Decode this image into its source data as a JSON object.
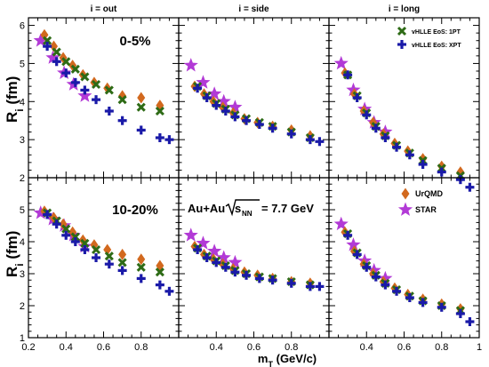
{
  "chart_data": {
    "type": "scatter",
    "xlabel": "m_T (GeV/c)",
    "ylabel": "R_i (fm)",
    "xlim": [
      0.2,
      1.0
    ],
    "ylim_top": [
      2,
      6.2
    ],
    "ylim_bottom": [
      1,
      6.0
    ],
    "xticks": [
      "0.2",
      "0.4",
      "0.6",
      "0.8",
      "1"
    ],
    "yticks_top": [
      "2",
      "3",
      "4",
      "5",
      "6"
    ],
    "yticks_bottom": [
      "1",
      "2",
      "3",
      "4",
      "5"
    ],
    "grid": false,
    "annotation": "Au+Au",
    "annotation_energy": "= 7.7 GeV",
    "panels": [
      {
        "row": 0,
        "col": 0,
        "title": "i = out",
        "centrality": "0-5%",
        "series": [
          {
            "name": "UrQMD",
            "x": [
              0.285,
              0.335,
              0.385,
              0.435,
              0.49,
              0.55,
              0.62,
              0.7,
              0.8,
              0.9
            ],
            "y": [
              5.75,
              5.45,
              5.15,
              4.95,
              4.7,
              4.5,
              4.35,
              4.15,
              4.1,
              3.9
            ]
          },
          {
            "name": "STAR",
            "x": [
              0.265,
              0.33,
              0.39,
              0.44,
              0.5
            ],
            "y": [
              5.6,
              5.15,
              4.75,
              4.45,
              4.15
            ]
          },
          {
            "name": "vHLLE EoS: 1PT",
            "x": [
              0.3,
              0.35,
              0.4,
              0.45,
              0.5,
              0.56,
              0.63,
              0.7,
              0.8,
              0.9
            ],
            "y": [
              5.6,
              5.3,
              5.05,
              4.85,
              4.65,
              4.45,
              4.3,
              4.05,
              3.85,
              3.75
            ]
          },
          {
            "name": "vHLLE EoS: XPT",
            "x": [
              0.3,
              0.35,
              0.4,
              0.45,
              0.5,
              0.56,
              0.63,
              0.7,
              0.8,
              0.9,
              0.95
            ],
            "y": [
              5.45,
              5.05,
              4.75,
              4.5,
              4.3,
              4.05,
              3.75,
              3.5,
              3.25,
              3.05,
              3.0
            ]
          }
        ]
      },
      {
        "row": 0,
        "col": 1,
        "title": "i = side",
        "centrality": "",
        "series": [
          {
            "name": "UrQMD",
            "x": [
              0.285,
              0.335,
              0.385,
              0.435,
              0.49,
              0.55,
              0.62,
              0.7,
              0.8,
              0.9
            ],
            "y": [
              4.4,
              4.2,
              4.0,
              3.85,
              3.7,
              3.55,
              3.45,
              3.35,
              3.25,
              3.1
            ]
          },
          {
            "name": "STAR",
            "x": [
              0.265,
              0.33,
              0.39,
              0.44,
              0.5
            ],
            "y": [
              4.95,
              4.5,
              4.2,
              4.0,
              3.85
            ]
          },
          {
            "name": "vHLLE EoS: 1PT",
            "x": [
              0.3,
              0.35,
              0.4,
              0.45,
              0.5,
              0.56,
              0.63,
              0.7,
              0.8,
              0.9
            ],
            "y": [
              4.4,
              4.15,
              3.95,
              3.8,
              3.65,
              3.55,
              3.45,
              3.35,
              3.2,
              3.05
            ]
          },
          {
            "name": "vHLLE EoS: XPT",
            "x": [
              0.3,
              0.35,
              0.4,
              0.45,
              0.5,
              0.56,
              0.63,
              0.7,
              0.8,
              0.9,
              0.95
            ],
            "y": [
              4.35,
              4.1,
              3.9,
              3.75,
              3.6,
              3.5,
              3.4,
              3.3,
              3.15,
              3.0,
              2.95
            ]
          }
        ]
      },
      {
        "row": 0,
        "col": 2,
        "title": "i = long",
        "centrality": "",
        "series": [
          {
            "name": "UrQMD",
            "x": [
              0.285,
              0.335,
              0.385,
              0.435,
              0.49,
              0.55,
              0.62,
              0.7,
              0.8,
              0.9
            ],
            "y": [
              4.75,
              4.2,
              3.75,
              3.45,
              3.15,
              2.9,
              2.7,
              2.5,
              2.3,
              2.15
            ]
          },
          {
            "name": "STAR",
            "x": [
              0.265,
              0.33,
              0.39,
              0.44,
              0.5
            ],
            "y": [
              5.0,
              4.3,
              3.8,
              3.45,
              3.2
            ]
          },
          {
            "name": "vHLLE EoS: 1PT",
            "x": [
              0.3,
              0.35,
              0.4,
              0.45,
              0.5,
              0.56,
              0.63,
              0.7,
              0.8,
              0.9
            ],
            "y": [
              4.7,
              4.15,
              3.7,
              3.35,
              3.1,
              2.85,
              2.65,
              2.45,
              2.25,
              2.05
            ]
          },
          {
            "name": "vHLLE EoS: XPT",
            "x": [
              0.3,
              0.35,
              0.4,
              0.45,
              0.5,
              0.56,
              0.63,
              0.7,
              0.8,
              0.9,
              0.95
            ],
            "y": [
              4.7,
              4.1,
              3.65,
              3.3,
              3.05,
              2.8,
              2.6,
              2.35,
              2.15,
              1.95,
              1.75
            ]
          }
        ]
      },
      {
        "row": 1,
        "col": 0,
        "title": "",
        "centrality": "10-20%",
        "series": [
          {
            "name": "UrQMD",
            "x": [
              0.285,
              0.335,
              0.385,
              0.435,
              0.49,
              0.55,
              0.62,
              0.7,
              0.8,
              0.9
            ],
            "y": [
              4.95,
              4.75,
              4.55,
              4.3,
              4.05,
              3.9,
              3.75,
              3.6,
              3.45,
              3.25
            ]
          },
          {
            "name": "STAR",
            "x": [
              0.265,
              0.33,
              0.39,
              0.44,
              0.5
            ],
            "y": [
              4.9,
              4.7,
              4.5,
              4.2,
              3.85
            ]
          },
          {
            "name": "vHLLE EoS: 1PT",
            "x": [
              0.3,
              0.35,
              0.4,
              0.45,
              0.5,
              0.56,
              0.63,
              0.7,
              0.8,
              0.9
            ],
            "y": [
              4.9,
              4.65,
              4.4,
              4.15,
              3.95,
              3.75,
              3.55,
              3.35,
              3.2,
              3.05
            ]
          },
          {
            "name": "vHLLE EoS: XPT",
            "x": [
              0.3,
              0.35,
              0.4,
              0.45,
              0.5,
              0.56,
              0.63,
              0.7,
              0.8,
              0.9,
              0.95
            ],
            "y": [
              4.85,
              4.55,
              4.2,
              4.0,
              3.75,
              3.5,
              3.3,
              3.1,
              2.85,
              2.65,
              2.45
            ]
          }
        ]
      },
      {
        "row": 1,
        "col": 1,
        "title": "",
        "centrality": "",
        "series": [
          {
            "name": "UrQMD",
            "x": [
              0.285,
              0.335,
              0.385,
              0.435,
              0.49,
              0.55,
              0.62,
              0.7,
              0.8,
              0.9
            ],
            "y": [
              3.85,
              3.6,
              3.45,
              3.3,
              3.15,
              3.05,
              2.95,
              2.85,
              2.75,
              2.7
            ]
          },
          {
            "name": "STAR",
            "x": [
              0.265,
              0.33,
              0.39,
              0.44,
              0.5
            ],
            "y": [
              4.2,
              3.95,
              3.7,
              3.5,
              3.35
            ]
          },
          {
            "name": "vHLLE EoS: 1PT",
            "x": [
              0.3,
              0.35,
              0.4,
              0.45,
              0.5,
              0.56,
              0.63,
              0.7,
              0.8,
              0.9
            ],
            "y": [
              3.8,
              3.55,
              3.4,
              3.25,
              3.1,
              3.0,
              2.9,
              2.85,
              2.75,
              2.65
            ]
          },
          {
            "name": "vHLLE EoS: XPT",
            "x": [
              0.3,
              0.35,
              0.4,
              0.45,
              0.5,
              0.56,
              0.63,
              0.7,
              0.8,
              0.9,
              0.95
            ],
            "y": [
              3.75,
              3.5,
              3.35,
              3.2,
              3.05,
              2.95,
              2.85,
              2.8,
              2.7,
              2.6,
              2.6
            ]
          }
        ]
      },
      {
        "row": 1,
        "col": 2,
        "title": "",
        "centrality": "",
        "series": [
          {
            "name": "UrQMD",
            "x": [
              0.285,
              0.335,
              0.385,
              0.435,
              0.49,
              0.55,
              0.62,
              0.7,
              0.8,
              0.9
            ],
            "y": [
              4.3,
              3.7,
              3.3,
              3.0,
              2.75,
              2.55,
              2.35,
              2.2,
              2.05,
              1.9
            ]
          },
          {
            "name": "STAR",
            "x": [
              0.265,
              0.33,
              0.39,
              0.44,
              0.5
            ],
            "y": [
              4.55,
              3.9,
              3.4,
              3.1,
              2.85
            ]
          },
          {
            "name": "vHLLE EoS: 1PT",
            "x": [
              0.3,
              0.35,
              0.4,
              0.45,
              0.5,
              0.56,
              0.63,
              0.7,
              0.8,
              0.9
            ],
            "y": [
              4.25,
              3.65,
              3.25,
              2.95,
              2.7,
              2.5,
              2.3,
              2.15,
              2.0,
              1.85
            ]
          },
          {
            "name": "vHLLE EoS: XPT",
            "x": [
              0.3,
              0.35,
              0.4,
              0.45,
              0.5,
              0.56,
              0.63,
              0.7,
              0.8,
              0.9,
              0.95
            ],
            "y": [
              4.2,
              3.6,
              3.2,
              2.9,
              2.65,
              2.45,
              2.25,
              2.1,
              1.95,
              1.75,
              1.5
            ]
          }
        ]
      }
    ],
    "legend_top": {
      "placement": "top-right of i = long panel",
      "items": [
        {
          "name": "vHLLE EoS: 1PT",
          "marker": "x-cross"
        },
        {
          "name": "vHLLE EoS: XPT",
          "marker": "plus"
        }
      ]
    },
    "legend_bottom": {
      "placement": "top-right of lower right panel",
      "items": [
        {
          "name": "UrQMD",
          "marker": "diamond"
        },
        {
          "name": "STAR",
          "marker": "star"
        }
      ]
    },
    "colors": {
      "UrQMD": "#d2691e",
      "STAR": "#b23ad6",
      "vHLLE EoS: 1PT": "#2e6b16",
      "vHLLE EoS: XPT": "#1a1aa8"
    },
    "markers": {
      "UrQMD": "diamond",
      "STAR": "star",
      "vHLLE EoS: 1PT": "x-cross",
      "vHLLE EoS: XPT": "plus"
    }
  }
}
